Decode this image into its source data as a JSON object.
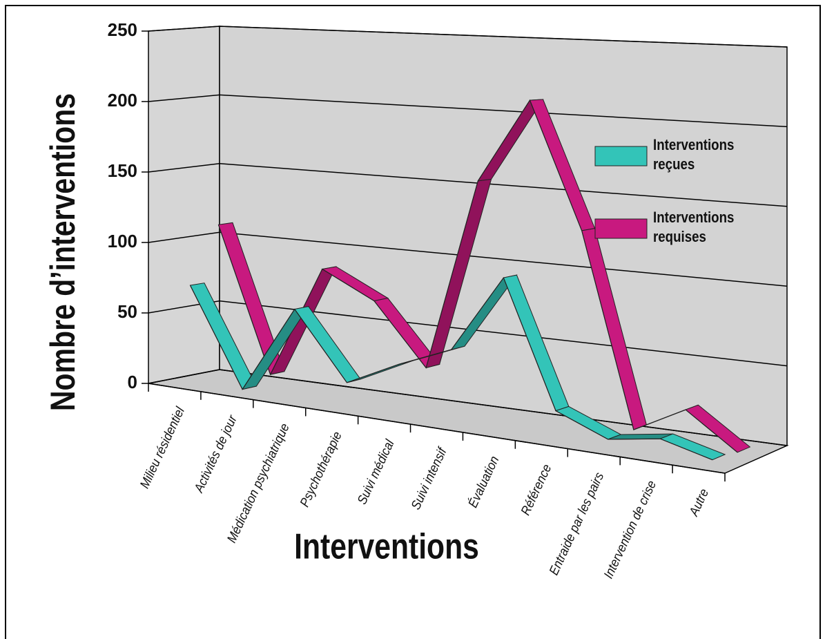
{
  "chart_data": {
    "type": "line3d",
    "y_label": "Nombre d’interventions",
    "x_label": "Interventions",
    "categories": [
      "Milieu résidentiel",
      "Activités de jour",
      "Médication psychiatrique",
      "Psychothérapie",
      "Suivi médical",
      "Suivi intensif",
      "Évaluation",
      "Référence",
      "Entraide par les pairs",
      "Intervention de crise",
      "Autre"
    ],
    "series": [
      {
        "name": "Interventions reçues",
        "color": "#33c4b8",
        "values": [
          70,
          2,
          62,
          17,
          34,
          48,
          98,
          18,
          5,
          10,
          2
        ]
      },
      {
        "name": "Interventions requises",
        "color": "#c8197f",
        "values": [
          110,
          8,
          86,
          68,
          27,
          155,
          210,
          128,
          5,
          22,
          0
        ]
      }
    ],
    "ylim": [
      0,
      250
    ],
    "yticks": [
      0,
      50,
      100,
      150,
      200,
      250
    ],
    "grid": true
  }
}
